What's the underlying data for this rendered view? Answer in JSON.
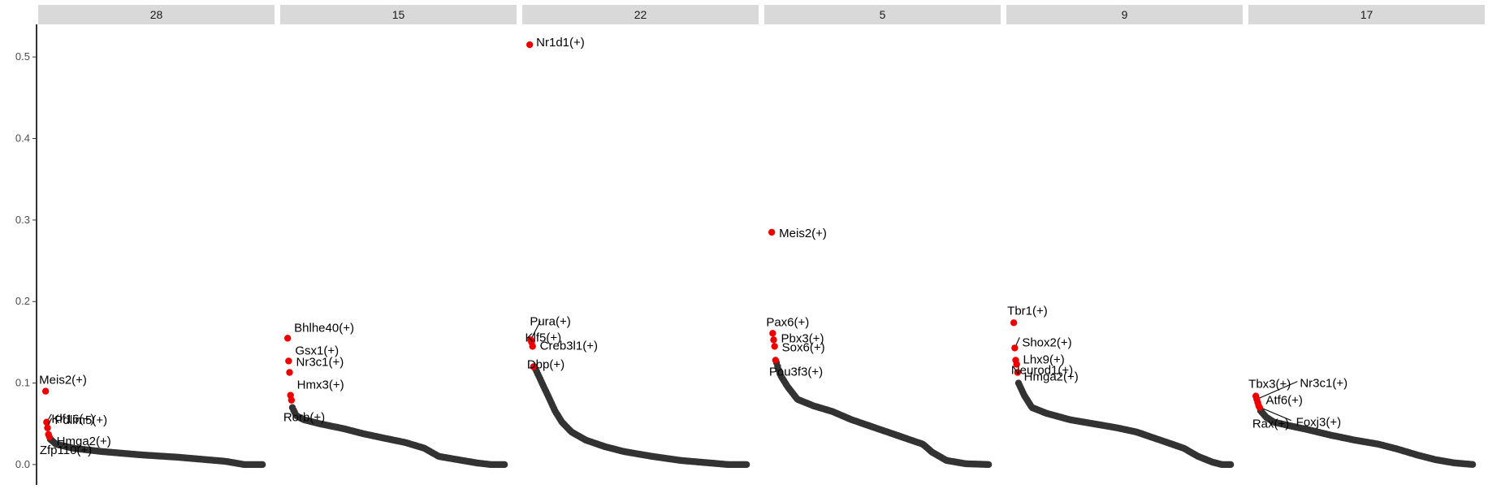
{
  "chart_data": {
    "type": "scatter",
    "title": "",
    "xlabel": "",
    "ylabel": "",
    "ylim": [
      -0.025,
      0.54
    ],
    "yticks": [
      0.0,
      0.1,
      0.2,
      0.3,
      0.4,
      0.5
    ],
    "ytick_labels": [
      "0.0",
      "0.1",
      "0.2",
      "0.3",
      "0.4",
      "0.5"
    ],
    "grid": false,
    "legend": "none",
    "colors": {
      "highlight": "#ee0000",
      "rest": "#333333",
      "strip": "#d9d9d9"
    },
    "panels": [
      {
        "strip": "28",
        "highlighted": [
          {
            "label": "Meis2(+)",
            "rank": 1,
            "value": 0.09
          },
          {
            "label": "Klf16(+)",
            "rank": 2,
            "value": 0.052
          },
          {
            "label": "Pdlim5(+)",
            "rank": 3,
            "value": 0.045
          },
          {
            "label": "Hmga2(+)",
            "rank": 4,
            "value": 0.037
          },
          {
            "label": "Zfp110(+)",
            "rank": 5,
            "value": 0.034
          }
        ],
        "curve": [
          [
            6,
            0.031
          ],
          [
            12,
            0.025
          ],
          [
            30,
            0.02
          ],
          [
            60,
            0.016
          ],
          [
            100,
            0.012
          ],
          [
            140,
            0.009
          ],
          [
            170,
            0.006
          ],
          [
            190,
            0.004
          ],
          [
            200,
            0.002
          ],
          [
            210,
            0.0
          ],
          [
            230,
            0.0
          ]
        ]
      },
      {
        "strip": "15",
        "highlighted": [
          {
            "label": "Bhlhe40(+)",
            "rank": 1,
            "value": 0.155
          },
          {
            "label": "Gsx1(+)",
            "rank": 2,
            "value": 0.127
          },
          {
            "label": "Nr3c1(+)",
            "rank": 3,
            "value": 0.113
          },
          {
            "label": "Hmx3(+)",
            "rank": 4,
            "value": 0.085
          },
          {
            "label": "Rorb(+)",
            "rank": 5,
            "value": 0.079
          }
        ],
        "curve": [
          [
            6,
            0.07
          ],
          [
            10,
            0.06
          ],
          [
            18,
            0.055
          ],
          [
            35,
            0.05
          ],
          [
            60,
            0.044
          ],
          [
            80,
            0.038
          ],
          [
            100,
            0.033
          ],
          [
            125,
            0.027
          ],
          [
            145,
            0.02
          ],
          [
            160,
            0.01
          ],
          [
            185,
            0.005
          ],
          [
            200,
            0.002
          ],
          [
            215,
            0.0
          ],
          [
            230,
            0.0
          ]
        ]
      },
      {
        "strip": "22",
        "highlighted": [
          {
            "label": "Nr1d1(+)",
            "rank": 1,
            "value": 0.515
          },
          {
            "label": "Pura(+)",
            "rank": 2,
            "value": 0.153
          },
          {
            "label": "Klf5(+)",
            "rank": 3,
            "value": 0.15
          },
          {
            "label": "Creb3l1(+)",
            "rank": 4,
            "value": 0.145
          },
          {
            "label": "Dbp(+)",
            "rank": 5,
            "value": 0.12
          }
        ],
        "curve": [
          [
            6,
            0.12
          ],
          [
            12,
            0.105
          ],
          [
            16,
            0.095
          ],
          [
            22,
            0.08
          ],
          [
            28,
            0.065
          ],
          [
            35,
            0.052
          ],
          [
            45,
            0.04
          ],
          [
            60,
            0.03
          ],
          [
            80,
            0.022
          ],
          [
            100,
            0.016
          ],
          [
            130,
            0.01
          ],
          [
            160,
            0.005
          ],
          [
            190,
            0.002
          ],
          [
            210,
            0.0
          ],
          [
            230,
            0.0
          ]
        ]
      },
      {
        "strip": "5",
        "highlighted": [
          {
            "label": "Meis2(+)",
            "rank": 1,
            "value": 0.285
          },
          {
            "label": "Pax6(+)",
            "rank": 2,
            "value": 0.161
          },
          {
            "label": "Pbx3(+)",
            "rank": 3,
            "value": 0.153
          },
          {
            "label": "Sox6(+)",
            "rank": 4,
            "value": 0.145
          },
          {
            "label": "Pou3f3(+)",
            "rank": 5,
            "value": 0.128
          }
        ],
        "curve": [
          [
            6,
            0.125
          ],
          [
            10,
            0.11
          ],
          [
            18,
            0.095
          ],
          [
            28,
            0.08
          ],
          [
            45,
            0.072
          ],
          [
            65,
            0.065
          ],
          [
            85,
            0.055
          ],
          [
            110,
            0.045
          ],
          [
            140,
            0.033
          ],
          [
            160,
            0.025
          ],
          [
            170,
            0.015
          ],
          [
            185,
            0.005
          ],
          [
            205,
            0.001
          ],
          [
            230,
            0.0
          ]
        ]
      },
      {
        "strip": "9",
        "highlighted": [
          {
            "label": "Tbr1(+)",
            "rank": 1,
            "value": 0.174
          },
          {
            "label": "Shox2(+)",
            "rank": 2,
            "value": 0.143
          },
          {
            "label": "Lhx9(+)",
            "rank": 3,
            "value": 0.128
          },
          {
            "label": "Hmga2(+)",
            "rank": 4,
            "value": 0.123
          },
          {
            "label": "Neurod1(+)",
            "rank": 5,
            "value": 0.113
          }
        ],
        "curve": [
          [
            6,
            0.1
          ],
          [
            12,
            0.085
          ],
          [
            20,
            0.07
          ],
          [
            35,
            0.063
          ],
          [
            60,
            0.055
          ],
          [
            85,
            0.05
          ],
          [
            110,
            0.045
          ],
          [
            130,
            0.04
          ],
          [
            155,
            0.03
          ],
          [
            180,
            0.02
          ],
          [
            195,
            0.01
          ],
          [
            210,
            0.003
          ],
          [
            220,
            0.0
          ],
          [
            230,
            0.0
          ]
        ]
      },
      {
        "strip": "17",
        "highlighted": [
          {
            "label": "Tbx3(+)",
            "rank": 1,
            "value": 0.084
          },
          {
            "label": "Nr3c1(+)",
            "rank": 2,
            "value": 0.08
          },
          {
            "label": "Atf6(+)",
            "rank": 3,
            "value": 0.076
          },
          {
            "label": "Foxj3(+)",
            "rank": 4,
            "value": 0.072
          },
          {
            "label": "Rax(+)",
            "rank": 5,
            "value": 0.07
          }
        ],
        "curve": [
          [
            6,
            0.066
          ],
          [
            12,
            0.058
          ],
          [
            20,
            0.052
          ],
          [
            35,
            0.048
          ],
          [
            55,
            0.043
          ],
          [
            80,
            0.036
          ],
          [
            105,
            0.03
          ],
          [
            130,
            0.025
          ],
          [
            150,
            0.019
          ],
          [
            170,
            0.012
          ],
          [
            190,
            0.006
          ],
          [
            210,
            0.002
          ],
          [
            230,
            0.0
          ]
        ]
      }
    ]
  }
}
